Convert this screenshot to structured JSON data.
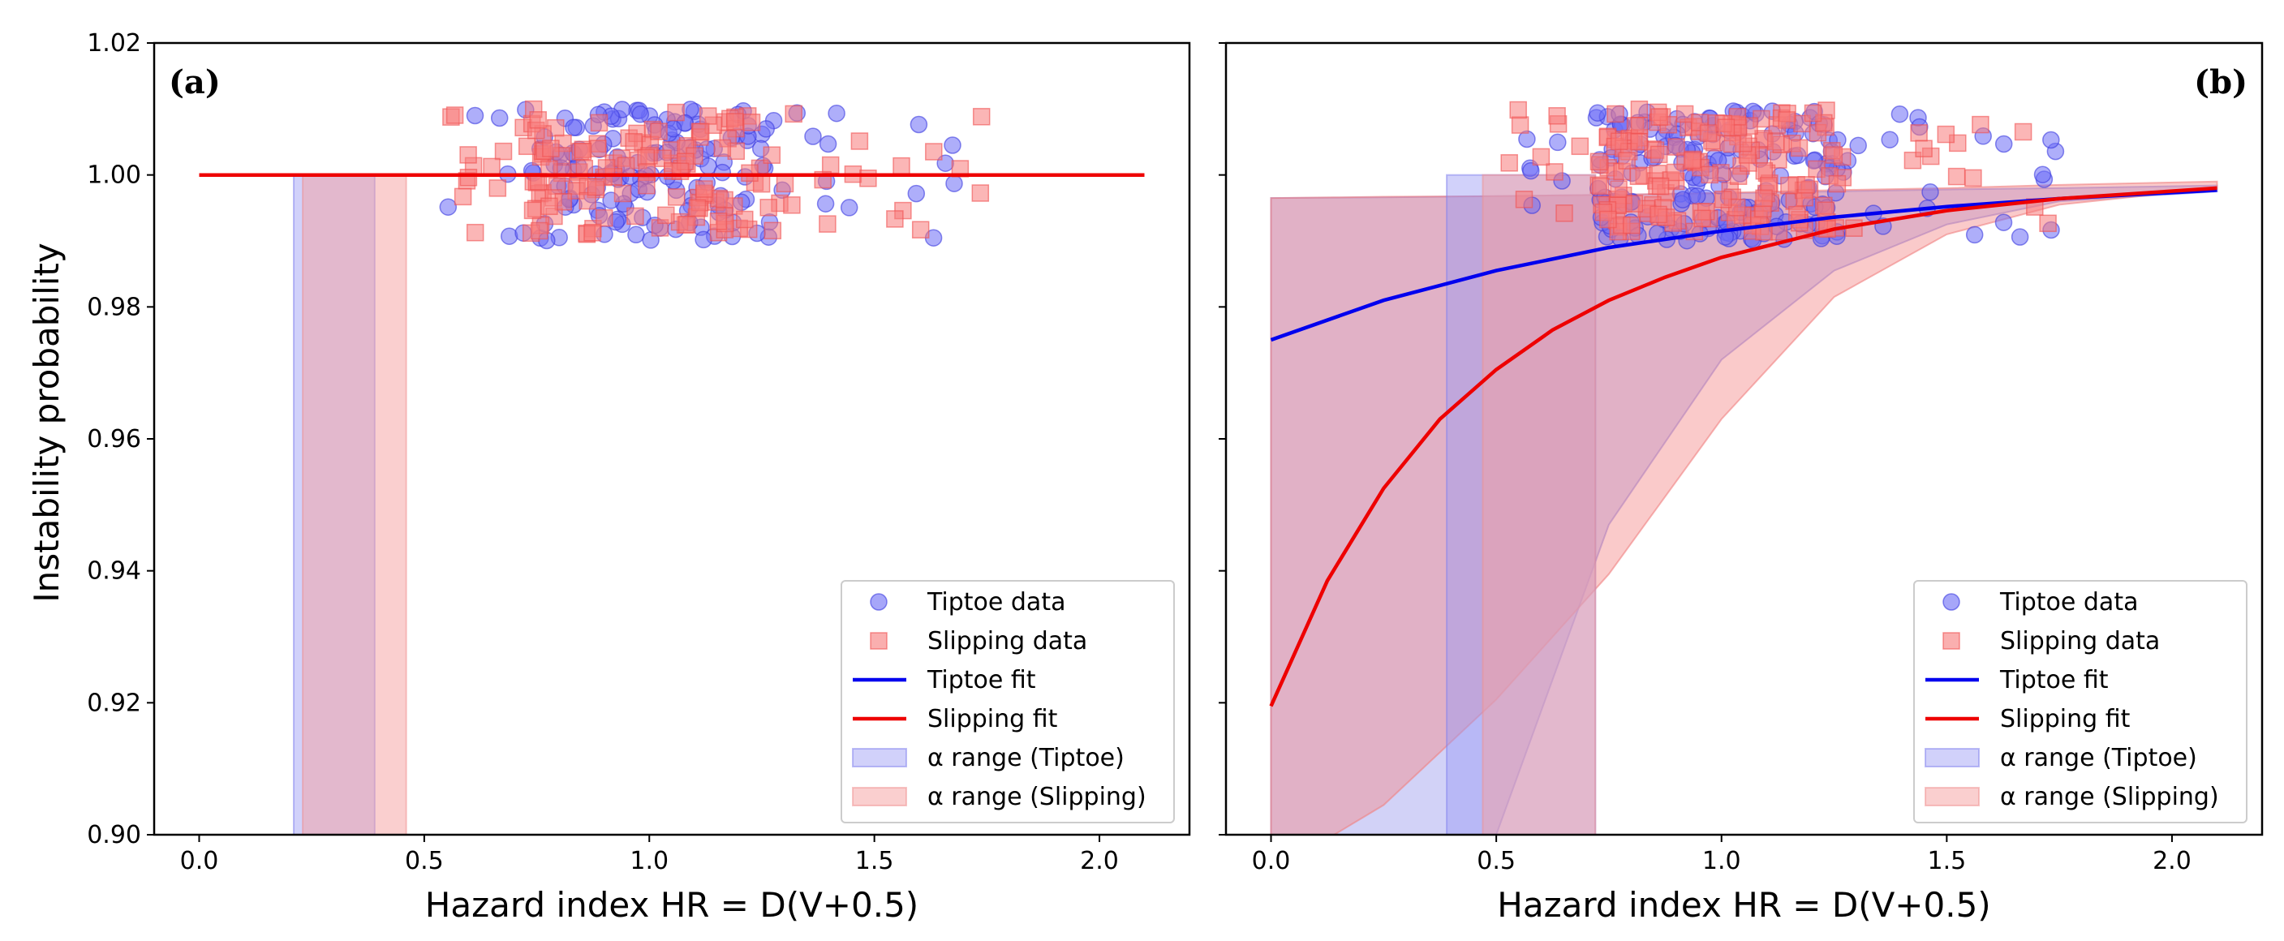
{
  "colors": {
    "tiptoe": "#0000ee",
    "slipping": "#ee0000",
    "tiptoe_marker": "#6b6bf5",
    "slipping_marker": "#f77a7a",
    "tiptoe_band": "#b8b8f5",
    "slipping_band": "#f5b0b0"
  },
  "shared_ylabel": "Instability probability",
  "chart_data": [
    {
      "type": "scatter",
      "panel_label": "(a)",
      "xlabel": "Hazard index HR = D(V+0.5)",
      "ylabel": "Instability probability",
      "xlim": [
        -0.1,
        2.2
      ],
      "ylim": [
        0.9,
        1.02
      ],
      "xticks": [
        0.0,
        0.5,
        1.0,
        1.5,
        2.0
      ],
      "xtick_labels": [
        "0.0",
        "0.5",
        "1.0",
        "1.5",
        "2.0"
      ],
      "yticks": [
        0.9,
        0.92,
        0.94,
        0.96,
        0.98,
        1.0,
        1.02
      ],
      "ytick_labels": [
        "0.90",
        "0.92",
        "0.94",
        "0.96",
        "0.98",
        "1.00",
        "1.02"
      ],
      "series": [
        {
          "name": "Tiptoe fit",
          "kind": "line",
          "x": [
            0.0,
            2.1
          ],
          "y": [
            1.0,
            1.0
          ]
        },
        {
          "name": "Slipping fit",
          "kind": "line",
          "x": [
            0.0,
            2.1
          ],
          "y": [
            1.0,
            1.0
          ]
        }
      ],
      "alpha_ranges": [
        {
          "name": "α range (Tiptoe)",
          "x": [
            0.21,
            0.39
          ],
          "y": [
            0.9,
            1.0
          ]
        },
        {
          "name": "α range (Slipping)",
          "x": [
            0.23,
            0.46
          ],
          "y": [
            0.9,
            1.0
          ]
        }
      ],
      "scatter": [
        {
          "name": "Tiptoe data",
          "marker": "circle",
          "x_range": [
            0.52,
            1.75
          ],
          "y_range": [
            0.99,
            1.01
          ],
          "count": 160,
          "seed": 11
        },
        {
          "name": "Slipping data",
          "marker": "square",
          "x_range": [
            0.52,
            1.75
          ],
          "y_range": [
            0.991,
            1.01
          ],
          "count": 160,
          "seed": 23
        }
      ],
      "legend": [
        "Tiptoe data",
        "Slipping data",
        "Tiptoe fit",
        "Slipping fit",
        "α range (Tiptoe)",
        "α range (Slipping)"
      ],
      "legend_position": "lower-right"
    },
    {
      "type": "scatter",
      "panel_label": "(b)",
      "xlabel": "Hazard index HR = D(V+0.5)",
      "ylabel": "",
      "xlim": [
        -0.1,
        2.2
      ],
      "ylim": [
        0.9,
        1.02
      ],
      "xticks": [
        0.0,
        0.5,
        1.0,
        1.5,
        2.0
      ],
      "xtick_labels": [
        "0.0",
        "0.5",
        "1.0",
        "1.5",
        "2.0"
      ],
      "yticks": [
        0.9,
        0.92,
        0.94,
        0.96,
        0.98,
        1.0,
        1.02
      ],
      "ytick_labels": [],
      "series": [
        {
          "name": "Tiptoe fit",
          "kind": "line",
          "x": [
            0.0,
            0.25,
            0.5,
            0.75,
            1.0,
            1.25,
            1.5,
            1.75,
            2.1
          ],
          "y": [
            0.975,
            0.981,
            0.9855,
            0.989,
            0.9915,
            0.9936,
            0.9952,
            0.9964,
            0.9977
          ]
        },
        {
          "name": "Slipping fit",
          "kind": "line",
          "x": [
            0.0,
            0.125,
            0.25,
            0.375,
            0.5,
            0.625,
            0.75,
            0.875,
            1.0,
            1.25,
            1.5,
            1.75,
            2.1
          ],
          "y": [
            0.9195,
            0.9385,
            0.9525,
            0.963,
            0.9705,
            0.9765,
            0.981,
            0.9845,
            0.9875,
            0.9918,
            0.9946,
            0.9964,
            0.998
          ]
        }
      ],
      "bands": [
        {
          "name": "Tiptoe band",
          "x": [
            0.0,
            0.25,
            0.5,
            0.75,
            1.0,
            1.25,
            1.5,
            1.75,
            2.1
          ],
          "upper": [
            0.9965,
            0.9966,
            0.9968,
            0.997,
            0.9972,
            0.9975,
            0.9978,
            0.998,
            0.9984
          ],
          "lower": [
            0.9,
            0.9,
            0.9,
            0.947,
            0.972,
            0.9855,
            0.9925,
            0.996,
            0.9975
          ]
        },
        {
          "name": "Slipping band",
          "x": [
            0.0,
            0.14,
            0.25,
            0.5,
            0.75,
            1.0,
            1.25,
            1.5,
            1.75,
            2.1
          ],
          "upper": [
            0.9965,
            0.9966,
            0.9967,
            0.9968,
            0.997,
            0.9973,
            0.9977,
            0.998,
            0.9985,
            0.999
          ],
          "lower": [
            0.9,
            0.9,
            0.9045,
            0.9205,
            0.9395,
            0.963,
            0.9815,
            0.991,
            0.9955,
            0.998
          ]
        }
      ],
      "alpha_ranges": [
        {
          "name": "α range (Tiptoe)",
          "x": [
            0.39,
            0.72
          ],
          "y": [
            0.9,
            1.0
          ]
        },
        {
          "name": "α range (Slipping)",
          "x": [
            0.47,
            0.72
          ],
          "y": [
            0.9,
            1.0
          ]
        }
      ],
      "scatter": [
        {
          "name": "Tiptoe data",
          "marker": "circle",
          "x_range": [
            0.52,
            1.75
          ],
          "y_range": [
            0.99,
            1.01
          ],
          "count": 200,
          "seed": 37
        },
        {
          "name": "Slipping data",
          "marker": "square",
          "x_range": [
            0.52,
            1.75
          ],
          "y_range": [
            0.991,
            1.01
          ],
          "count": 200,
          "seed": 53
        }
      ],
      "legend": [
        "Tiptoe data",
        "Slipping data",
        "Tiptoe fit",
        "Slipping fit",
        "α range (Tiptoe)",
        "α range (Slipping)"
      ],
      "legend_position": "lower-right"
    }
  ]
}
